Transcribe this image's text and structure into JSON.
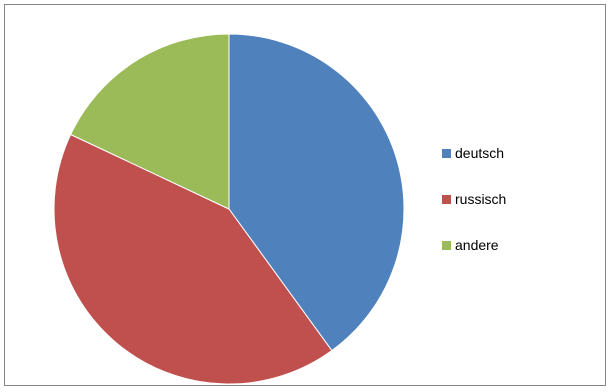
{
  "chart_data": {
    "type": "pie",
    "title": "",
    "legend_position": "right",
    "slices": [
      {
        "label": "deutsch",
        "value": 40,
        "color": "#4f81bd"
      },
      {
        "label": "russisch",
        "value": 42,
        "color": "#c0504d"
      },
      {
        "label": "andere",
        "value": 18,
        "color": "#9bbb59"
      }
    ]
  }
}
